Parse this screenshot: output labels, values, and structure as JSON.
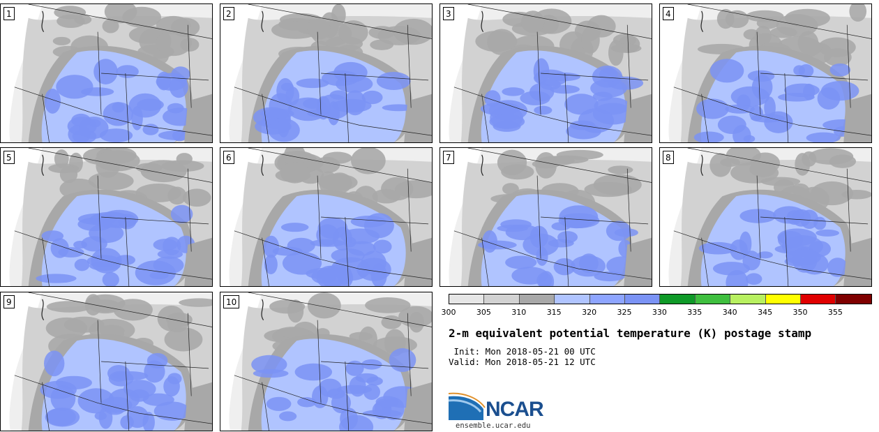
{
  "panels": [
    {
      "label": "1"
    },
    {
      "label": "2"
    },
    {
      "label": "3"
    },
    {
      "label": "4"
    },
    {
      "label": "5"
    },
    {
      "label": "6"
    },
    {
      "label": "7"
    },
    {
      "label": "8"
    },
    {
      "label": "9"
    },
    {
      "label": "10"
    }
  ],
  "colorbar": {
    "colors": [
      "#e6e6e6",
      "#d2d2d2",
      "#a8a8a8",
      "#b0c4ff",
      "#8ea5ff",
      "#7b93f5",
      "#0f9a28",
      "#3fbf3f",
      "#b8f060",
      "#ffff00",
      "#e00000",
      "#7f0000"
    ],
    "ticks": [
      "300",
      "305",
      "310",
      "315",
      "320",
      "325",
      "330",
      "335",
      "340",
      "345",
      "350",
      "355"
    ]
  },
  "title": "2-m equivalent potential temperature (K) postage stamp",
  "init": " Init: Mon 2018-05-21 00 UTC",
  "valid": "Valid: Mon 2018-05-21 12 UTC",
  "logo": {
    "text": "NCAR",
    "site": "ensemble.ucar.edu",
    "brand_color": "#1b4f8f"
  }
}
